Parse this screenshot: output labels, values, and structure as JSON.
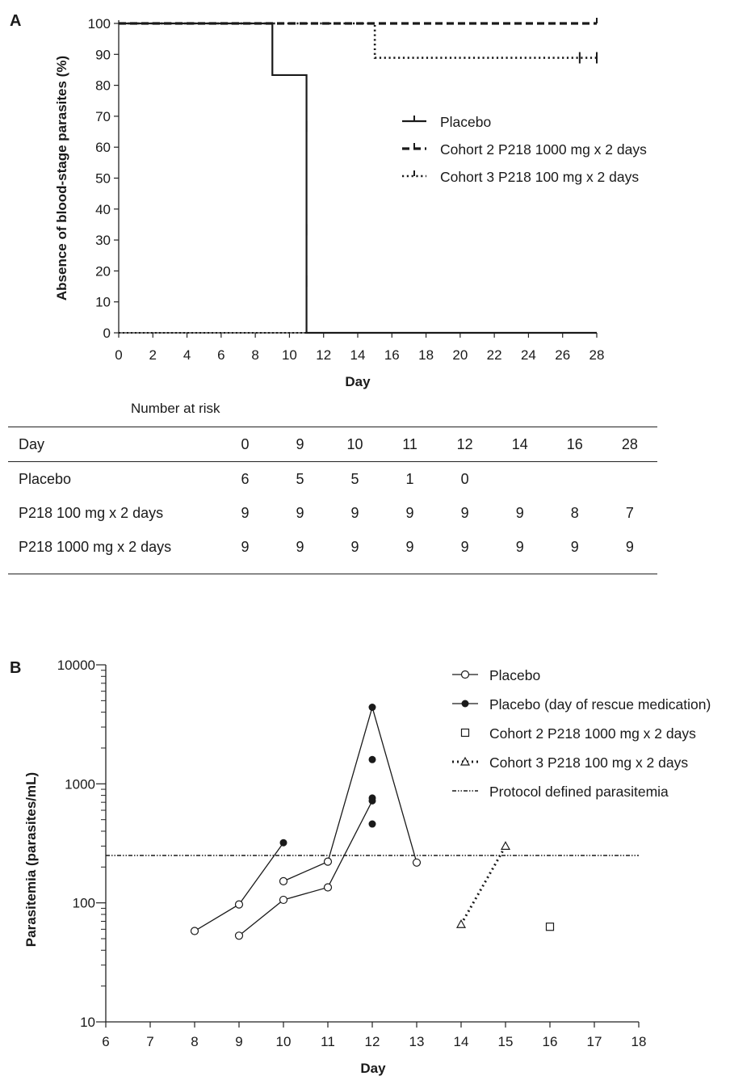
{
  "panel_a": {
    "letter": "A",
    "chart_data": {
      "type": "line",
      "subtype": "kaplan-meier step",
      "xlabel": "Day",
      "ylabel": "Absence of blood-stage parasites (%)",
      "xlim": [
        0,
        28
      ],
      "ylim": [
        0,
        100
      ],
      "xticks": [
        0,
        2,
        4,
        6,
        8,
        10,
        12,
        14,
        16,
        18,
        20,
        22,
        24,
        26,
        28
      ],
      "yticks": [
        0,
        10,
        20,
        30,
        40,
        50,
        60,
        70,
        80,
        90,
        100
      ],
      "legend_position": "right-middle",
      "series": [
        {
          "name": "Placebo",
          "style": "solid",
          "steps": [
            [
              0,
              100
            ],
            [
              9,
              100
            ],
            [
              9,
              83.3
            ],
            [
              11,
              83.3
            ],
            [
              11,
              0
            ],
            [
              28,
              0
            ]
          ],
          "censor_marks": [
            [
              11,
              66.7
            ],
            [
              11,
              33.3
            ],
            [
              11,
              16.7
            ]
          ]
        },
        {
          "name": "Cohort 2 P218 1000 mg x 2 days",
          "style": "dashed",
          "steps": [
            [
              0,
              100
            ],
            [
              28,
              100
            ]
          ],
          "censor_marks": [
            [
              28,
              100
            ]
          ]
        },
        {
          "name": "Cohort 3 P218 100 mg x 2 days",
          "style": "dotted",
          "steps": [
            [
              0,
              100
            ],
            [
              15,
              100
            ],
            [
              15,
              88.9
            ],
            [
              28,
              88.9
            ]
          ],
          "censor_marks": [
            [
              27,
              88.9
            ],
            [
              28,
              88.9
            ]
          ]
        }
      ]
    },
    "risk_table": {
      "caption": "Number at risk",
      "header": [
        "Day",
        "0",
        "9",
        "10",
        "11",
        "12",
        "14",
        "16",
        "28"
      ],
      "rows": [
        [
          "Placebo",
          "6",
          "5",
          "5",
          "1",
          "0",
          "",
          "",
          ""
        ],
        [
          "P218 100 mg x 2 days",
          "9",
          "9",
          "9",
          "9",
          "9",
          "9",
          "8",
          "7"
        ],
        [
          "P218 1000 mg x 2 days",
          "9",
          "9",
          "9",
          "9",
          "9",
          "9",
          "9",
          "9"
        ]
      ]
    }
  },
  "panel_b": {
    "letter": "B",
    "chart_data": {
      "type": "scatter",
      "xlabel": "Day",
      "ylabel": "Parasitemia (parasites/mL)",
      "xlim": [
        6,
        18
      ],
      "ylim": [
        10,
        10000
      ],
      "yscale": "log",
      "xticks": [
        6,
        7,
        8,
        9,
        10,
        11,
        12,
        13,
        14,
        15,
        16,
        17,
        18
      ],
      "yticks": [
        10,
        100,
        1000,
        10000
      ],
      "ytick_labels": [
        "10",
        "100",
        "1000",
        "10000"
      ],
      "legend_position": "top-right",
      "threshold": {
        "name": "Protocol defined parasitemia",
        "y": 250
      },
      "legend": [
        "Placebo",
        "Placebo (day of rescue medication)",
        "Cohort 2 P218 1000 mg x 2 days",
        "Cohort 3 P218 100 mg x 2 days",
        "Protocol defined parasitemia"
      ],
      "series": [
        {
          "name": "Placebo",
          "marker": "open-circle",
          "points": [
            [
              8,
              58
            ],
            [
              9,
              97
            ],
            [
              9,
              53
            ],
            [
              10,
              152
            ],
            [
              10,
              106
            ],
            [
              11,
              222
            ],
            [
              11,
              135
            ],
            [
              13,
              218
            ]
          ],
          "lines": [
            [
              [
                8,
                58
              ],
              [
                9,
                97
              ],
              [
                10,
                320
              ]
            ],
            [
              [
                9,
                53
              ],
              [
                10,
                106
              ],
              [
                11,
                135
              ],
              [
                12,
                720
              ]
            ],
            [
              [
                10,
                152
              ],
              [
                11,
                222
              ],
              [
                12,
                4400
              ],
              [
                13,
                218
              ]
            ]
          ]
        },
        {
          "name": "Placebo (day of rescue medication)",
          "marker": "filled-circle",
          "points": [
            [
              10,
              320
            ],
            [
              12,
              4400
            ],
            [
              12,
              1600
            ],
            [
              12,
              760
            ],
            [
              12,
              720
            ],
            [
              12,
              460
            ]
          ]
        },
        {
          "name": "Cohort 2 P218 1000 mg x 2 days",
          "marker": "open-square",
          "points": [
            [
              16,
              63
            ]
          ]
        },
        {
          "name": "Cohort 3 P218 100 mg x 2 days",
          "marker": "open-triangle",
          "line": "dotted",
          "points": [
            [
              14,
              66
            ],
            [
              15,
              300
            ]
          ]
        }
      ]
    }
  }
}
